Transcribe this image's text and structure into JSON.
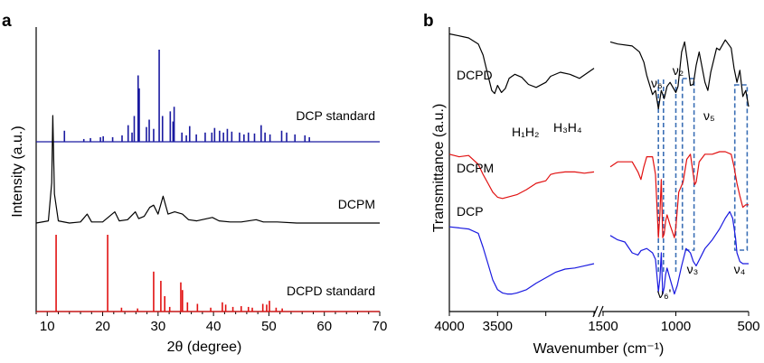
{
  "chart_data": [
    {
      "type": "line",
      "panel": "a",
      "xlabel": "2θ (degree)",
      "ylabel": "Intensity (a.u.)",
      "xlim": [
        8,
        70
      ],
      "xticks": [
        10,
        20,
        30,
        40,
        50,
        60,
        70
      ],
      "series": [
        {
          "name": "DCP standard",
          "color": "#1a1aa0",
          "style": "sticks",
          "x": [
            13.1,
            16.6,
            17.8,
            19.6,
            20.1,
            21.8,
            23.5,
            24.6,
            25.3,
            25.7,
            26.4,
            26.6,
            27.9,
            28.4,
            29.2,
            30.2,
            30.8,
            32.2,
            32.7,
            32.9,
            34.3,
            35.1,
            35.7,
            36.9,
            38.5,
            39.7,
            40.2,
            41.1,
            41.8,
            42.5,
            43.3,
            44.7,
            45.5,
            46.3,
            47.4,
            48.6,
            49.3,
            50.2,
            52.3,
            53.2,
            54.7,
            56.5,
            57.3
          ],
          "y": [
            12,
            3,
            4,
            5,
            6,
            5,
            7,
            18,
            10,
            28,
            72,
            58,
            16,
            24,
            14,
            100,
            28,
            33,
            22,
            38,
            10,
            7,
            17,
            8,
            10,
            10,
            15,
            12,
            10,
            14,
            11,
            10,
            8,
            10,
            9,
            18,
            10,
            8,
            12,
            10,
            8,
            7,
            5
          ]
        },
        {
          "name": "DCPM",
          "color": "#000000",
          "style": "line",
          "x": [
            8,
            10.2,
            10.8,
            11.0,
            11.3,
            12,
            14,
            16,
            17.2,
            18,
            20,
            22.2,
            23,
            24.5,
            25.9,
            26.5,
            27.5,
            28.5,
            29.2,
            30,
            30.9,
            31.8,
            33,
            34.4,
            35.5,
            37,
            39.8,
            41,
            43,
            45,
            47.7,
            49,
            51.5,
            55,
            60,
            65,
            70
          ],
          "y": [
            4,
            6,
            40,
            100,
            30,
            6,
            4,
            5,
            12,
            5,
            5,
            14,
            6,
            7,
            14,
            8,
            10,
            18,
            20,
            12,
            28,
            12,
            14,
            12,
            7,
            6,
            9,
            6,
            5,
            5,
            7,
            5,
            5,
            4,
            4,
            4,
            4
          ]
        },
        {
          "name": "DCPD standard",
          "color": "#e11111",
          "style": "sticks",
          "x": [
            11.6,
            20.9,
            23.4,
            26.3,
            29.2,
            30.5,
            31.2,
            32.1,
            34.1,
            34.4,
            35.3,
            37.1,
            39.5,
            41.6,
            42.2,
            43.5,
            45.0,
            46.3,
            47.0,
            48.9,
            49.6,
            50.1,
            51.3,
            52.4
          ],
          "y": [
            100,
            100,
            5,
            4,
            52,
            40,
            20,
            6,
            38,
            28,
            12,
            10,
            5,
            12,
            9,
            6,
            7,
            6,
            5,
            10,
            9,
            14,
            5,
            4
          ]
        }
      ]
    },
    {
      "type": "line",
      "panel": "b",
      "xlabel": "Wavenumber (cm⁻¹)",
      "ylabel": "Transmittance (a.u.)",
      "x_axis_break": true,
      "segments": [
        {
          "xlim": [
            4000,
            2500
          ],
          "xticks": [
            4000,
            3500,
            3000,
            2500
          ],
          "xtick_labels": [
            "4000",
            "3500",
            "",
            ""
          ]
        },
        {
          "xlim": [
            1500,
            500
          ],
          "xticks": [
            1500,
            1000,
            500
          ],
          "xtick_labels": [
            "1500",
            "1000",
            "500"
          ]
        }
      ],
      "series": [
        {
          "name": "DCPD",
          "color": "#000000",
          "high": {
            "x": [
              4000,
              3900,
              3800,
              3700,
              3650,
              3600,
              3560,
              3530,
              3500,
              3460,
              3420,
              3380,
              3320,
              3250,
              3180,
              3100,
              3000,
              2950,
              2850,
              2750,
              2650,
              2500
            ],
            "t": [
              96,
              94,
              92,
              86,
              75,
              55,
              40,
              37,
              45,
              38,
              42,
              52,
              56,
              53,
              46,
              43,
              48,
              54,
              58,
              56,
              52,
              62
            ]
          },
          "low": {
            "x": [
              1450,
              1400,
              1300,
              1250,
              1220,
              1200,
              1160,
              1140,
              1120,
              1100,
              1080,
              1060,
              1040,
              1000,
              985,
              960,
              940,
              920,
              900,
              880,
              860,
              840,
              800,
              780,
              760,
              720,
              700,
              660,
              620,
              600,
              580,
              560,
              540,
              520,
              500
            ],
            "t": [
              88,
              86,
              84,
              78,
              68,
              55,
              36,
              40,
              22,
              40,
              32,
              44,
              48,
              38,
              44,
              78,
              88,
              68,
              45,
              46,
              65,
              78,
              48,
              40,
              58,
              82,
              80,
              90,
              82,
              62,
              48,
              60,
              34,
              40,
              24
            ]
          }
        },
        {
          "name": "DCPM",
          "color": "#e11111",
          "high": {
            "x": [
              4000,
              3900,
              3800,
              3700,
              3650,
              3600,
              3550,
              3500,
              3450,
              3400,
              3300,
              3200,
              3100,
              3000,
              2950,
              2900,
              2800,
              2700,
              2600,
              2500
            ],
            "t": [
              78,
              76,
              77,
              70,
              62,
              55,
              48,
              44,
              43,
              44,
              46,
              50,
              55,
              57,
              62,
              63,
              64,
              64,
              63,
              64
            ]
          },
          "low": {
            "x": [
              1450,
              1400,
              1350,
              1300,
              1260,
              1240,
              1220,
              1200,
              1160,
              1140,
              1120,
              1110,
              1100,
              1090,
              1080,
              1070,
              1060,
              1040,
              1010,
              1000,
              980,
              950,
              925,
              900,
              880,
              870,
              860,
              840,
              800,
              750,
              700,
              660,
              620,
              600,
              580,
              560,
              540,
              520,
              500
            ],
            "t": [
              68,
              72,
              72,
              72,
              64,
              58,
              68,
              76,
              76,
              62,
              12,
              30,
              58,
              12,
              15,
              25,
              30,
              22,
              12,
              20,
              48,
              56,
              74,
              78,
              62,
              54,
              56,
              72,
              78,
              78,
              80,
              80,
              78,
              68,
              55,
              45,
              36,
              38,
              38
            ]
          }
        },
        {
          "name": "DCP",
          "color": "#1a1ae0",
          "high": {
            "x": [
              4000,
              3900,
              3800,
              3700,
              3650,
              3600,
              3550,
              3500,
              3450,
              3400,
              3350,
              3300,
              3200,
              3100,
              3000,
              2900,
              2800,
              2700,
              2600,
              2500
            ],
            "t": [
              64,
              63,
              62,
              58,
              45,
              30,
              15,
              6,
              3,
              2,
              2,
              3,
              6,
              12,
              17,
              22,
              25,
              26,
              28,
              30
            ]
          },
          "low": {
            "x": [
              1450,
              1400,
              1350,
              1300,
              1260,
              1240,
              1200,
              1160,
              1140,
              1120,
              1110,
              1100,
              1090,
              1080,
              1070,
              1060,
              1040,
              1010,
              990,
              960,
              930,
              900,
              880,
              860,
              830,
              800,
              750,
              700,
              660,
              630,
              610,
              590,
              580,
              560,
              540,
              520,
              500
            ],
            "t": [
              56,
              52,
              50,
              40,
              38,
              42,
              44,
              40,
              34,
              4,
              16,
              40,
              2,
              8,
              20,
              26,
              16,
              2,
              10,
              28,
              44,
              40,
              32,
              28,
              36,
              44,
              52,
              62,
              72,
              78,
              72,
              54,
              40,
              32,
              30,
              30,
              30
            ]
          }
        }
      ],
      "band_annotations": [
        {
          "label": "H₁H₂",
          "x": 3520,
          "segment": "high"
        },
        {
          "label": "H₃H₄",
          "x": 3100,
          "segment": "high"
        },
        {
          "label": "ν₆",
          "x": 1120,
          "segment": "low"
        },
        {
          "label": "ν₆'",
          "x": 1060,
          "segment": "low"
        },
        {
          "label": "ν₂",
          "x": 975,
          "segment": "low"
        },
        {
          "label": "ν₃",
          "x": 880,
          "segment": "low"
        },
        {
          "label": "ν₅",
          "x": 790,
          "segment": "low"
        },
        {
          "label": "ν₄",
          "x": 540,
          "segment": "low"
        }
      ]
    }
  ]
}
